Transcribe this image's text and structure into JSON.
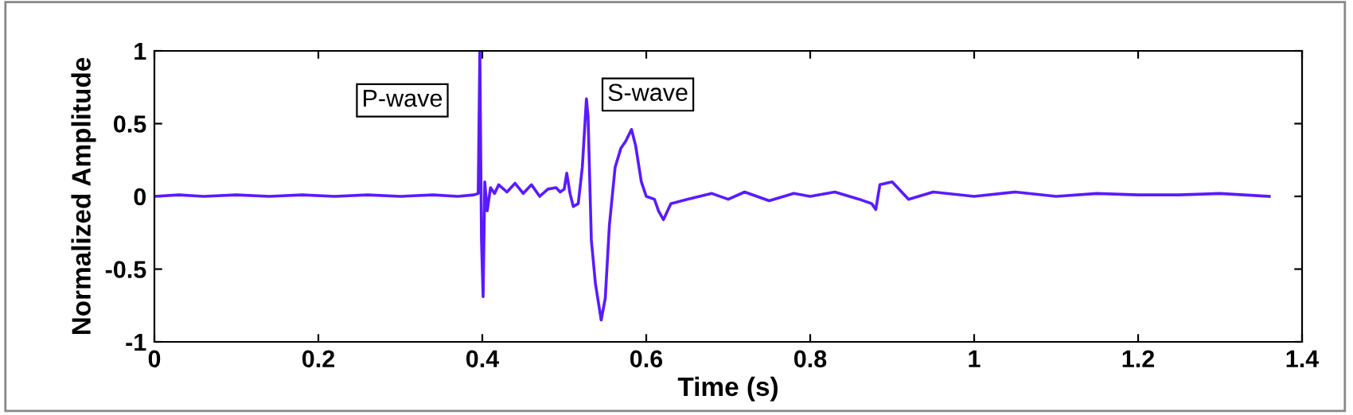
{
  "chart_data": {
    "type": "line",
    "xlabel": "Time (s)",
    "ylabel": "Normalized Amplitude",
    "xlim": [
      0,
      1.4
    ],
    "ylim": [
      -1,
      1
    ],
    "xticks": [
      0,
      0.2,
      0.4,
      0.6,
      0.8,
      1,
      1.2,
      1.4
    ],
    "yticks": [
      -1,
      -0.5,
      0,
      0.5,
      1
    ],
    "grid": false,
    "legend": false,
    "annotations": [
      "P-wave",
      "S-wave"
    ],
    "series": [
      {
        "color": "#5a1aff",
        "x": [
          0,
          0.03,
          0.06,
          0.1,
          0.14,
          0.18,
          0.22,
          0.26,
          0.3,
          0.34,
          0.37,
          0.39,
          0.395,
          0.397,
          0.399,
          0.401,
          0.403,
          0.406,
          0.41,
          0.415,
          0.42,
          0.43,
          0.44,
          0.45,
          0.46,
          0.47,
          0.48,
          0.49,
          0.495,
          0.5,
          0.503,
          0.507,
          0.511,
          0.517,
          0.522,
          0.527,
          0.529,
          0.533,
          0.538,
          0.545,
          0.55,
          0.555,
          0.562,
          0.569,
          0.575,
          0.582,
          0.587,
          0.594,
          0.6,
          0.61,
          0.615,
          0.621,
          0.63,
          0.65,
          0.68,
          0.7,
          0.72,
          0.75,
          0.78,
          0.8,
          0.83,
          0.86,
          0.875,
          0.88,
          0.885,
          0.9,
          0.92,
          0.95,
          1.0,
          1.05,
          1.1,
          1.15,
          1.2,
          1.25,
          1.3,
          1.36
        ],
        "values": [
          0,
          0.01,
          0.0,
          0.01,
          0.0,
          0.01,
          0.0,
          0.01,
          0.0,
          0.01,
          0.0,
          0.01,
          0.02,
          1.0,
          -0.3,
          -0.69,
          0.1,
          -0.1,
          0.06,
          0.02,
          0.08,
          0.03,
          0.09,
          0.02,
          0.08,
          0.0,
          0.05,
          0.06,
          0.03,
          0.05,
          0.16,
          0.02,
          -0.07,
          -0.05,
          0.2,
          0.67,
          0.55,
          -0.3,
          -0.6,
          -0.85,
          -0.7,
          -0.2,
          0.2,
          0.33,
          0.38,
          0.46,
          0.35,
          0.1,
          0.0,
          -0.02,
          -0.1,
          -0.16,
          -0.05,
          -0.02,
          0.02,
          -0.02,
          0.03,
          -0.03,
          0.02,
          0.0,
          0.03,
          -0.02,
          -0.05,
          -0.09,
          0.08,
          0.1,
          -0.02,
          0.03,
          0.0,
          0.03,
          0.0,
          0.02,
          0.01,
          0.01,
          0.02,
          0.0
        ]
      }
    ]
  }
}
